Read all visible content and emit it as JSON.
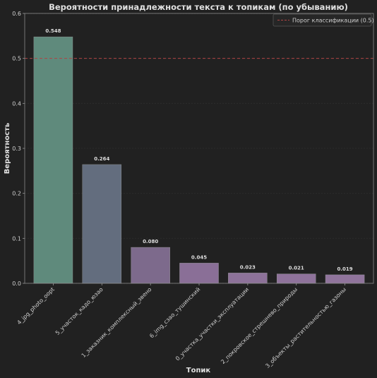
{
  "chart_data": {
    "type": "bar",
    "title": "Вероятности принадлежности текста к топикам (по убыванию)",
    "xlabel": "Топик",
    "ylabel": "Вероятность",
    "ylim": [
      0,
      0.6
    ],
    "yticks": [
      "0.0",
      "0.1",
      "0.2",
      "0.3",
      "0.4",
      "0.5",
      "0.6"
    ],
    "categories": [
      "4_jpg_photo_oopt",
      "5_участок_кадо_юзао",
      "1_заказник_комплексный_звено",
      "6_img_сзао_тушинский",
      "0_участка_участки_эксплуатации",
      "2_покровское_стрешнево_природы",
      "3_объекты_растительностью_газоны"
    ],
    "values": [
      0.548,
      0.264,
      0.08,
      0.045,
      0.023,
      0.021,
      0.019
    ],
    "value_labels": [
      "0.548",
      "0.264",
      "0.080",
      "0.045",
      "0.023",
      "0.021",
      "0.019"
    ],
    "bar_colors": [
      "#5f8a7c",
      "#636d7e",
      "#7d6a8c",
      "#8a6f97",
      "#8d7299",
      "#8f739b",
      "#90749c"
    ],
    "threshold": 0.5,
    "threshold_label": "Порог классификации (0.5)",
    "threshold_color": "#b04444",
    "legend_position": "top-right",
    "grid": true
  }
}
